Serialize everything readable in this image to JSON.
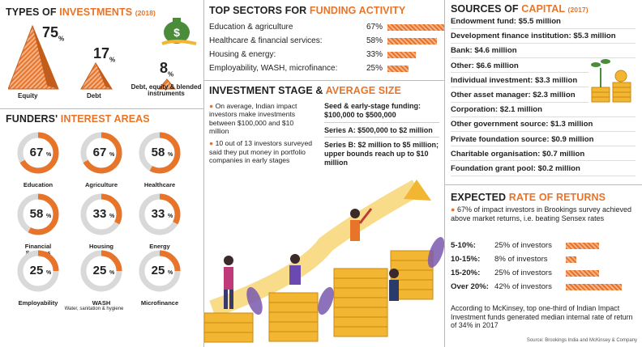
{
  "types": {
    "title_a": "TYPES OF ",
    "title_b": "INVESTMENTS",
    "year": "(2018)",
    "items": [
      {
        "pct": "75",
        "unit": "%",
        "label": "Equity"
      },
      {
        "pct": "17",
        "unit": "%",
        "label": "Debt"
      },
      {
        "pct": "8",
        "unit": "%",
        "label": "Debt, equity & blended instruments"
      }
    ]
  },
  "funders": {
    "title_a": "FUNDERS' ",
    "title_b": "INTEREST AREAS",
    "items": [
      {
        "pct": "67",
        "value": 67,
        "label": "Education",
        "sublabel": ""
      },
      {
        "pct": "67",
        "value": 67,
        "label": "Agriculture",
        "sublabel": ""
      },
      {
        "pct": "58",
        "value": 58,
        "label": "Healthcare",
        "sublabel": ""
      },
      {
        "pct": "58",
        "value": 58,
        "label": "Financial Services",
        "sublabel": ""
      },
      {
        "pct": "33",
        "value": 33,
        "label": "Housing",
        "sublabel": ""
      },
      {
        "pct": "33",
        "value": 33,
        "label": "Energy",
        "sublabel": ""
      },
      {
        "pct": "25",
        "value": 25,
        "label": "Employability",
        "sublabel": ""
      },
      {
        "pct": "25",
        "value": 25,
        "label": "WASH",
        "sublabel": "Water, sanitation & hygiene"
      },
      {
        "pct": "25",
        "value": 25,
        "label": "Microfinance",
        "sublabel": ""
      }
    ],
    "unit": "%"
  },
  "sectors": {
    "title_a": "TOP SECTORS FOR ",
    "title_b": "FUNDING ACTIVITY",
    "rows": [
      {
        "label": "Education & agriculture",
        "pct": "67%",
        "value": 67
      },
      {
        "label": "Healthcare & financial services:",
        "pct": "58%",
        "value": 58
      },
      {
        "label": "Housing & energy:",
        "pct": "33%",
        "value": 33
      },
      {
        "label": "Employability, WASH, microfinance:",
        "pct": "25%",
        "value": 25
      }
    ]
  },
  "stage": {
    "title_a": "INVESTMENT STAGE & ",
    "title_b": "AVERAGE SIZE",
    "bullet1": "On average, Indian impact investors make investments between $100,000 and $10 million",
    "bullet2": "10 out of 13 investors surveyed said they put money in portfolio companies in early stages",
    "seed": "Seed & early-stage funding: $100,000 to $500,000",
    "seriesA": "Series A: $500,000 to $2 million",
    "seriesB": "Series B: $2 million to $5 million; upper bounds reach up to $10 million"
  },
  "capital": {
    "title_a": "SOURCES OF ",
    "title_b": "CAPITAL",
    "year": "(2017)",
    "rows": [
      "Endowment fund: $5.5 million",
      "Development finance institution: $5.3 million",
      "Bank: $4.6 million",
      "Other: $6.6 million",
      "Individual investment: $3.3 million",
      "Other asset manager: $2.3 million",
      "Corporation: $2.1 million",
      "Other government source: $1.3 million",
      "Private foundation source: $0.9 million",
      "Charitable organisation: $0.7 million",
      "Foundation grant pool: $0.2 million"
    ]
  },
  "returns": {
    "title_a": "EXPECTED ",
    "title_b": "RATE OF RETURNS",
    "intro": "67% of impact investors in Brookings survey achieved above market returns, i.e. beating Sensex rates",
    "rows": [
      {
        "range": "5-10%:",
        "text": "25% of investors",
        "value": 25
      },
      {
        "range": "10-15%:",
        "text": "8% of investors",
        "value": 8
      },
      {
        "range": "15-20%:",
        "text": "25% of investors",
        "value": 25
      },
      {
        "range": "Over 20%:",
        "text": "42% of investors",
        "value": 42
      }
    ],
    "footer": "According to McKinsey, top one-third of Indian Impact Investment funds generated median internal rate of return of 34% in 2017",
    "source": "Source: Brookings India and McKinsey & Company"
  },
  "colors": {
    "accent": "#e8742a",
    "ring_bg": "#d9d9d9",
    "coin": "#f2b632",
    "plant": "#4a8c3a"
  }
}
